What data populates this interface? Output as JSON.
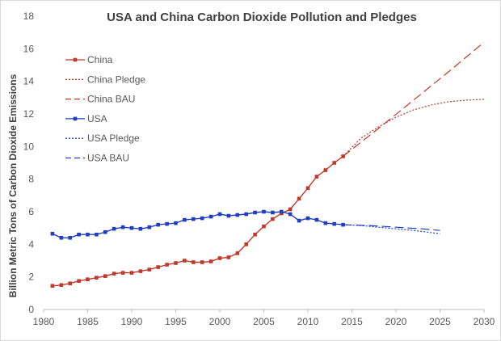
{
  "chart_data": {
    "type": "line",
    "title": "USA and China Carbon Dioxide Pollution and Pledges",
    "xlabel": "",
    "ylabel": "Billion Metric Tons of Carbon Dioxide Emissions",
    "xlim": [
      1980,
      2030
    ],
    "ylim": [
      0,
      18
    ],
    "x_ticks": [
      "1980",
      "1985",
      "1990",
      "1995",
      "2000",
      "2005",
      "2010",
      "2015",
      "2020",
      "2025",
      "2030"
    ],
    "y_ticks": [
      "0",
      "2",
      "4",
      "6",
      "8",
      "10",
      "12",
      "14",
      "16",
      "18"
    ],
    "grid": false,
    "legend_position": "left",
    "series": [
      {
        "name": "China",
        "style": "solid-markers",
        "color": "#c0392b",
        "x": [
          1981,
          1982,
          1983,
          1984,
          1985,
          1986,
          1987,
          1988,
          1989,
          1990,
          1991,
          1992,
          1993,
          1994,
          1995,
          1996,
          1997,
          1998,
          1999,
          2000,
          2001,
          2002,
          2003,
          2004,
          2005,
          2006,
          2007,
          2008,
          2009,
          2010,
          2011,
          2012,
          2013,
          2014
        ],
        "y": [
          1.45,
          1.5,
          1.6,
          1.75,
          1.85,
          1.95,
          2.05,
          2.2,
          2.25,
          2.25,
          2.35,
          2.45,
          2.6,
          2.75,
          2.85,
          3.0,
          2.9,
          2.9,
          2.95,
          3.15,
          3.2,
          3.45,
          4.0,
          4.6,
          5.1,
          5.55,
          5.9,
          6.15,
          6.8,
          7.45,
          8.15,
          8.55,
          9.0,
          9.4
        ]
      },
      {
        "name": "China Pledge",
        "style": "dotted",
        "color": "#c0392b",
        "x": [
          2014,
          2016,
          2018,
          2020,
          2022,
          2024,
          2026,
          2028,
          2030
        ],
        "y": [
          9.4,
          10.5,
          11.2,
          11.8,
          12.25,
          12.55,
          12.75,
          12.85,
          12.9
        ]
      },
      {
        "name": "China BAU",
        "style": "dashed",
        "color": "#c0392b",
        "x": [
          2014,
          2018,
          2022,
          2026,
          2030
        ],
        "y": [
          9.4,
          11.1,
          12.85,
          14.6,
          16.4
        ]
      },
      {
        "name": "USA",
        "style": "solid-markers",
        "color": "#1f3fbf",
        "x": [
          1981,
          1982,
          1983,
          1984,
          1985,
          1986,
          1987,
          1988,
          1989,
          1990,
          1991,
          1992,
          1993,
          1994,
          1995,
          1996,
          1997,
          1998,
          1999,
          2000,
          2001,
          2002,
          2003,
          2004,
          2005,
          2006,
          2007,
          2008,
          2009,
          2010,
          2011,
          2012,
          2013,
          2014
        ],
        "y": [
          4.65,
          4.4,
          4.4,
          4.6,
          4.6,
          4.6,
          4.75,
          4.95,
          5.05,
          5.0,
          4.95,
          5.05,
          5.2,
          5.25,
          5.3,
          5.5,
          5.55,
          5.6,
          5.7,
          5.85,
          5.75,
          5.8,
          5.85,
          5.95,
          6.0,
          5.95,
          6.0,
          5.85,
          5.45,
          5.6,
          5.5,
          5.3,
          5.25,
          5.2
        ]
      },
      {
        "name": "USA Pledge",
        "style": "dotted",
        "color": "#1f3fbf",
        "x": [
          2014,
          2016,
          2018,
          2020,
          2022,
          2025
        ],
        "y": [
          5.2,
          5.15,
          5.05,
          4.95,
          4.85,
          4.65
        ]
      },
      {
        "name": "USA BAU",
        "style": "dashed",
        "color": "#1f3fbf",
        "x": [
          2014,
          2017,
          2020,
          2023,
          2025
        ],
        "y": [
          5.2,
          5.15,
          5.05,
          4.95,
          4.85
        ]
      }
    ]
  }
}
